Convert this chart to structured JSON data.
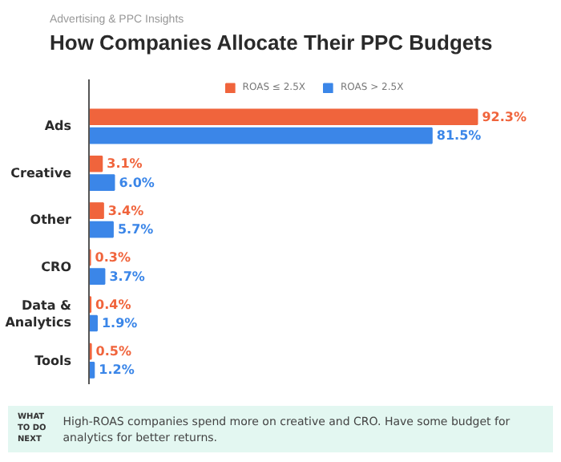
{
  "chart_data": {
    "type": "bar",
    "orientation": "horizontal",
    "subtitle": "Advertising & PPC Insights",
    "title": "How Companies Allocate Their PPC Budgets",
    "categories": [
      "Ads",
      "Creative",
      "Other",
      "CRO",
      "Data & Analytics",
      "Tools"
    ],
    "series": [
      {
        "name": "ROAS ≤ 2.5X",
        "color": "#f0643c",
        "values": [
          92.3,
          3.1,
          3.4,
          0.3,
          0.4,
          0.5
        ],
        "value_labels": [
          "92.3%",
          "3.1%",
          "3.4%",
          "0.3%",
          "0.4%",
          "0.5%"
        ]
      },
      {
        "name": "ROAS > 2.5X",
        "color": "#3b86e8",
        "values": [
          81.5,
          6.0,
          5.7,
          3.7,
          1.9,
          1.2
        ],
        "value_labels": [
          "81.5%",
          "6.0%",
          "5.7%",
          "3.7%",
          "1.9%",
          "1.2%"
        ]
      }
    ],
    "legend": "top",
    "tick_labels": "y",
    "annotations": [
      "WHAT TO DO NEXT",
      "High-ROAS companies spend more on creative and CRO. Have some budget for analytics for better returns."
    ]
  }
}
